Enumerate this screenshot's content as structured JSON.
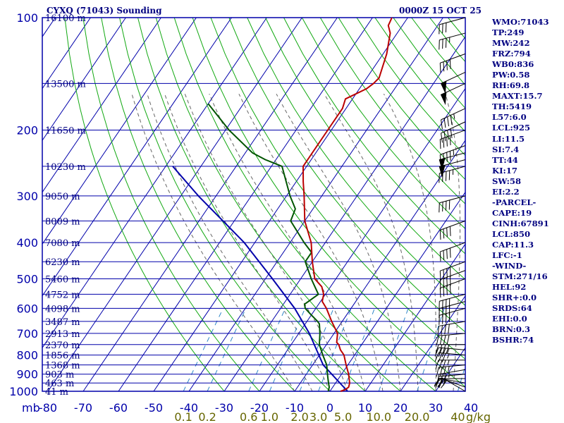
{
  "header": {
    "title": "CYXQ (71043) Sounding",
    "time": "0000Z 15 OCT 25"
  },
  "colors": {
    "frame": "#0000aa",
    "isotherm": "#0000aa",
    "dry_adiabat": "#11a811",
    "moist_adiabat": "#666666",
    "mixing_ratio": "#2e86c8",
    "temperature": "#bb0000",
    "dewpoint": "#005500",
    "parcel": "#0000aa",
    "label_text": "#000080",
    "mix_label": "#666600"
  },
  "indices": [
    "WMO:71043",
    "TP:249",
    "MW:242",
    "FRZ:794",
    "WB0:836",
    "PW:0.58",
    "RH:69.8",
    "MAXT:15.7",
    "TH:5419",
    "L57:6.0",
    "LCL:925",
    "LI:11.5",
    "SI:7.4",
    "TT:44",
    "KI:17",
    "SW:58",
    "EI:2.2",
    "-PARCEL-",
    "CAPE:19",
    "CINH:67891",
    "LCL:850",
    "CAP:11.3",
    "LFC:-1",
    "-WIND-",
    "STM:271/16",
    "HEL:92",
    "SHR+:0.0",
    "SRDS:64",
    "EHI:0.0",
    "BRN:0.3",
    "BSHR:74"
  ],
  "chart_data": {
    "type": "skew-t",
    "pressure_axis": {
      "unit": "mb",
      "labels": [
        100,
        200,
        300,
        400,
        500,
        600,
        700,
        800,
        900,
        1000
      ],
      "range": [
        100,
        1000
      ]
    },
    "temperature_axis": {
      "unit": "C",
      "labels": [
        -80,
        -70,
        -60,
        -50,
        -40,
        -30,
        -20,
        -10,
        0,
        10,
        20,
        30,
        40
      ]
    },
    "height_labels": [
      {
        "p": 100,
        "text": "16100 m"
      },
      {
        "p": 150,
        "text": "13500 m"
      },
      {
        "p": 200,
        "text": "11650 m"
      },
      {
        "p": 250,
        "text": "10230 m"
      },
      {
        "p": 300,
        "text": "9050 m"
      },
      {
        "p": 350,
        "text": "8009 m"
      },
      {
        "p": 400,
        "text": "7080 m"
      },
      {
        "p": 450,
        "text": "6230 m"
      },
      {
        "p": 500,
        "text": "5460 m"
      },
      {
        "p": 550,
        "text": "4752 m"
      },
      {
        "p": 600,
        "text": "4098 m"
      },
      {
        "p": 650,
        "text": "3487 m"
      },
      {
        "p": 700,
        "text": "2913 m"
      },
      {
        "p": 750,
        "text": "2370 m"
      },
      {
        "p": 800,
        "text": "1856 m"
      },
      {
        "p": 850,
        "text": "1368 m"
      },
      {
        "p": 900,
        "text": "903 m"
      },
      {
        "p": 950,
        "text": "463 m"
      },
      {
        "p": 1000,
        "text": "41 m"
      }
    ],
    "mixing_ratio_labels": [
      {
        "w": 0.1,
        "text": "0.1"
      },
      {
        "w": 0.2,
        "text": "0.2"
      },
      {
        "w": 0.6,
        "text": "0.6"
      },
      {
        "w": 1.0,
        "text": "1.0"
      },
      {
        "w": 2.0,
        "text": "2.0"
      },
      {
        "w": 3.0,
        "text": "3.0"
      },
      {
        "w": 5.0,
        "text": "5.0"
      },
      {
        "w": 10.0,
        "text": "10.0"
      },
      {
        "w": 20.0,
        "text": "20.0"
      },
      {
        "w": 40.0,
        "text": "40"
      }
    ],
    "mixing_unit": "g/kg",
    "temperature_profile": [
      {
        "p": 1000,
        "t": 3
      },
      {
        "p": 990,
        "t": 4
      },
      {
        "p": 975,
        "t": 4.5
      },
      {
        "p": 950,
        "t": 4
      },
      {
        "p": 925,
        "t": 3
      },
      {
        "p": 900,
        "t": 2
      },
      {
        "p": 850,
        "t": -0.5
      },
      {
        "p": 800,
        "t": -3
      },
      {
        "p": 775,
        "t": -5
      },
      {
        "p": 750,
        "t": -6.5
      },
      {
        "p": 740,
        "t": -7.5
      },
      {
        "p": 700,
        "t": -9
      },
      {
        "p": 650,
        "t": -13
      },
      {
        "p": 600,
        "t": -17
      },
      {
        "p": 575,
        "t": -19.5
      },
      {
        "p": 550,
        "t": -20.5
      },
      {
        "p": 525,
        "t": -22.5
      },
      {
        "p": 500,
        "t": -26
      },
      {
        "p": 450,
        "t": -30
      },
      {
        "p": 400,
        "t": -34
      },
      {
        "p": 350,
        "t": -40
      },
      {
        "p": 300,
        "t": -45
      },
      {
        "p": 275,
        "t": -48
      },
      {
        "p": 250,
        "t": -51
      },
      {
        "p": 200,
        "t": -51
      },
      {
        "p": 175,
        "t": -51
      },
      {
        "p": 165,
        "t": -52
      },
      {
        "p": 155,
        "t": -48
      },
      {
        "p": 150,
        "t": -47
      },
      {
        "p": 145,
        "t": -46.5
      },
      {
        "p": 125,
        "t": -49
      },
      {
        "p": 110,
        "t": -52
      },
      {
        "p": 105,
        "t": -54
      },
      {
        "p": 100,
        "t": -54.5
      }
    ],
    "dewpoint_profile": [
      {
        "p": 1000,
        "t": -0.5
      },
      {
        "p": 975,
        "t": -1
      },
      {
        "p": 950,
        "t": -2
      },
      {
        "p": 925,
        "t": -3
      },
      {
        "p": 900,
        "t": -4
      },
      {
        "p": 850,
        "t": -6
      },
      {
        "p": 800,
        "t": -9
      },
      {
        "p": 750,
        "t": -12
      },
      {
        "p": 700,
        "t": -14
      },
      {
        "p": 660,
        "t": -16
      },
      {
        "p": 650,
        "t": -17
      },
      {
        "p": 625,
        "t": -20
      },
      {
        "p": 600,
        "t": -23
      },
      {
        "p": 585,
        "t": -24
      },
      {
        "p": 550,
        "t": -22
      },
      {
        "p": 500,
        "t": -27
      },
      {
        "p": 450,
        "t": -32
      },
      {
        "p": 425,
        "t": -32
      },
      {
        "p": 400,
        "t": -36
      },
      {
        "p": 350,
        "t": -44
      },
      {
        "p": 325,
        "t": -45
      },
      {
        "p": 300,
        "t": -49
      },
      {
        "p": 250,
        "t": -57
      },
      {
        "p": 240,
        "t": -63
      },
      {
        "p": 230,
        "t": -68
      },
      {
        "p": 200,
        "t": -79
      },
      {
        "p": 170,
        "t": -90
      }
    ],
    "parcel_profile": [
      {
        "p": 1000,
        "t": 5
      },
      {
        "p": 850,
        "t": -7
      },
      {
        "p": 700,
        "t": -17
      },
      {
        "p": 600,
        "t": -26
      },
      {
        "p": 500,
        "t": -38
      },
      {
        "p": 400,
        "t": -53
      },
      {
        "p": 300,
        "t": -75
      },
      {
        "p": 250,
        "t": -88
      }
    ],
    "wind_barbs": [
      {
        "p": 1000,
        "dir": 300,
        "kt": 20
      },
      {
        "p": 975,
        "dir": 290,
        "kt": 30
      },
      {
        "p": 950,
        "dir": 280,
        "kt": 25
      },
      {
        "p": 925,
        "dir": 270,
        "kt": 25
      },
      {
        "p": 900,
        "dir": 265,
        "kt": 30
      },
      {
        "p": 875,
        "dir": 260,
        "kt": 35
      },
      {
        "p": 850,
        "dir": 265,
        "kt": 35
      },
      {
        "p": 825,
        "dir": 270,
        "kt": 35
      },
      {
        "p": 800,
        "dir": 275,
        "kt": 35
      },
      {
        "p": 775,
        "dir": 275,
        "kt": 35
      },
      {
        "p": 750,
        "dir": 270,
        "kt": 40
      },
      {
        "p": 700,
        "dir": 265,
        "kt": 40
      },
      {
        "p": 650,
        "dir": 260,
        "kt": 40
      },
      {
        "p": 600,
        "dir": 255,
        "kt": 40
      },
      {
        "p": 575,
        "dir": 255,
        "kt": 40
      },
      {
        "p": 550,
        "dir": 255,
        "kt": 40
      },
      {
        "p": 500,
        "dir": 250,
        "kt": 40
      },
      {
        "p": 475,
        "dir": 250,
        "kt": 40
      },
      {
        "p": 450,
        "dir": 250,
        "kt": 40
      },
      {
        "p": 400,
        "dir": 250,
        "kt": 40
      },
      {
        "p": 350,
        "dir": 250,
        "kt": 40
      },
      {
        "p": 300,
        "dir": 255,
        "kt": 40
      },
      {
        "p": 250,
        "dir": 255,
        "kt": 45
      },
      {
        "p": 240,
        "dir": 255,
        "kt": 50
      },
      {
        "p": 230,
        "dir": 255,
        "kt": 50
      },
      {
        "p": 220,
        "dir": 250,
        "kt": 45
      },
      {
        "p": 200,
        "dir": 250,
        "kt": 40
      },
      {
        "p": 190,
        "dir": 245,
        "kt": 40
      },
      {
        "p": 175,
        "dir": 245,
        "kt": 45
      },
      {
        "p": 150,
        "dir": 245,
        "kt": 50
      },
      {
        "p": 140,
        "dir": 245,
        "kt": 50
      },
      {
        "p": 125,
        "dir": 250,
        "kt": 40
      },
      {
        "p": 110,
        "dir": 255,
        "kt": 35
      },
      {
        "p": 100,
        "dir": 255,
        "kt": 30
      }
    ]
  }
}
